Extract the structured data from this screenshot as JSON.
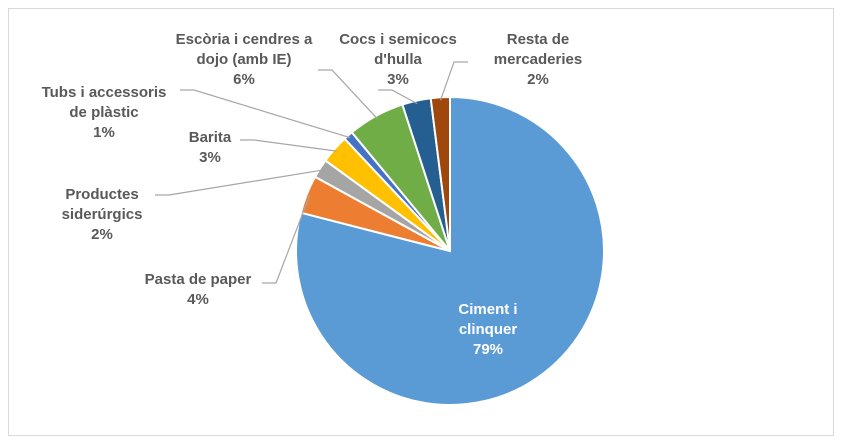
{
  "chart_data": {
    "type": "pie",
    "categories": [
      "Ciment i clinquer",
      "Pasta de paper",
      "Productes siderúrgics",
      "Barita",
      "Tubs i accessoris de plàstic",
      "Escòria i cendres a dojo (amb IE)",
      "Cocs i semicocs d'hulla",
      "Resta de mercaderies"
    ],
    "values": [
      79,
      4,
      2,
      3,
      1,
      6,
      3,
      2
    ],
    "value_labels": [
      "79%",
      "4%",
      "2%",
      "3%",
      "1%",
      "6%",
      "3%",
      "2%"
    ],
    "colors": [
      "#5b9bd5",
      "#ed7d31",
      "#a5a5a5",
      "#ffc000",
      "#4472c4",
      "#70ad47",
      "#255e91",
      "#9e480e"
    ]
  }
}
